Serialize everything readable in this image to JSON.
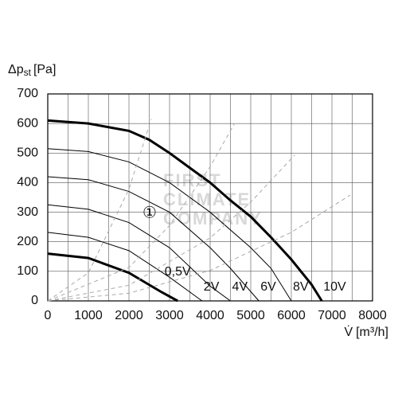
{
  "chart_data": {
    "type": "line",
    "ylabel": {
      "main": "Δp",
      "sub": "st",
      "unit": "[Pa]"
    },
    "xlabel": {
      "main": "V̇",
      "unit": "[m³/h]"
    },
    "annotation": "①",
    "watermark": [
      "FIRST",
      "CLIMATE",
      "COMPANY"
    ],
    "xlim": [
      0,
      8000
    ],
    "ylim": [
      0,
      700
    ],
    "xticks": [
      0,
      1000,
      2000,
      3000,
      4000,
      5000,
      6000,
      7000,
      8000
    ],
    "yticks": [
      0,
      100,
      200,
      300,
      400,
      500,
      600,
      700
    ],
    "xgrid": [
      500,
      1500,
      2500,
      3500,
      4500,
      5500,
      6500,
      7500
    ],
    "grid": true,
    "series": [
      {
        "name": "0,5V",
        "color": "#000000",
        "width": 3,
        "x": [
          0,
          1000,
          2000,
          2800,
          3200
        ],
        "values": [
          160,
          145,
          95,
          30,
          0
        ]
      },
      {
        "name": "2V",
        "color": "#000000",
        "width": 1,
        "x": [
          0,
          1000,
          2000,
          3000,
          3800
        ],
        "values": [
          232,
          215,
          170,
          80,
          0
        ]
      },
      {
        "name": "4V",
        "color": "#000000",
        "width": 1,
        "x": [
          0,
          1000,
          2000,
          3000,
          4000,
          4500
        ],
        "values": [
          325,
          310,
          265,
          180,
          50,
          0
        ]
      },
      {
        "name": "6V",
        "color": "#000000",
        "width": 1,
        "x": [
          0,
          1000,
          2000,
          3000,
          4000,
          4500,
          5200
        ],
        "values": [
          420,
          410,
          370,
          300,
          180,
          110,
          0
        ]
      },
      {
        "name": "8V",
        "color": "#000000",
        "width": 1,
        "x": [
          0,
          1000,
          2000,
          3000,
          4000,
          5000,
          5500,
          6000
        ],
        "values": [
          515,
          505,
          470,
          400,
          300,
          180,
          110,
          0
        ]
      },
      {
        "name": "10V",
        "color": "#000000",
        "width": 3,
        "x": [
          0,
          1000,
          2000,
          2500,
          3000,
          3500,
          4000,
          4500,
          5000,
          5500,
          6000,
          6500,
          6750
        ],
        "values": [
          610,
          600,
          575,
          545,
          500,
          450,
          400,
          340,
          285,
          215,
          140,
          55,
          0
        ]
      },
      {
        "color": "#aaaaaa",
        "width": 1,
        "dashed": true,
        "x": [
          0,
          1000,
          2000,
          2550
        ],
        "values": [
          0,
          95,
          378,
          615
        ]
      },
      {
        "color": "#aaaaaa",
        "width": 1,
        "dashed": true,
        "x": [
          0,
          2000,
          3000,
          4000,
          4600
        ],
        "values": [
          0,
          113,
          255,
          454,
          600
        ]
      },
      {
        "color": "#aaaaaa",
        "width": 1,
        "dashed": true,
        "x": [
          0,
          2000,
          4000,
          5000,
          6080
        ],
        "values": [
          0,
          53,
          213,
          334,
          493
        ]
      },
      {
        "color": "#aaaaaa",
        "width": 1,
        "dashed": true,
        "x": [
          0,
          2000,
          4000,
          6000,
          7450
        ],
        "values": [
          0,
          26,
          103,
          232,
          358
        ]
      }
    ]
  }
}
